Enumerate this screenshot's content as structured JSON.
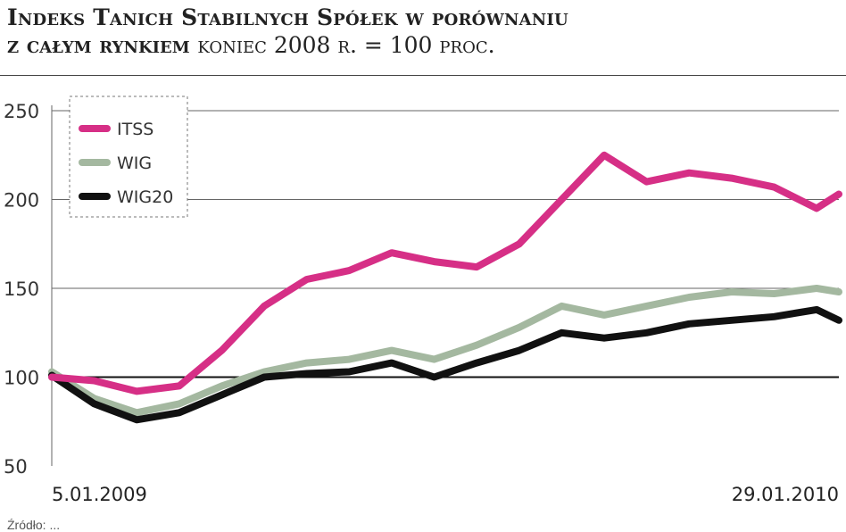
{
  "title_line1": "Indeks Tanich Stabilnych Spółek w porównaniu",
  "title_line2_bold": "z całym rynkiem",
  "title_line2_rest": "koniec 2008 r. = 100 proc.",
  "footer": "Źródło: ...",
  "colors": {
    "ITSS": "#d62f86",
    "WIG": "#a4b8a0",
    "WIG20": "#111111"
  },
  "chart_data": {
    "type": "line",
    "title": "",
    "xlabel": "",
    "ylabel": "",
    "x_start_label": "5.01.2009",
    "x_end_label": "29.01.2010",
    "ylim": [
      50,
      250
    ],
    "yticks": [
      50,
      100,
      150,
      200,
      250
    ],
    "grid": true,
    "legend": "top-left",
    "x": [
      "2009-01-05",
      "2009-01-26",
      "2009-02-16",
      "2009-03-09",
      "2009-03-30",
      "2009-04-20",
      "2009-05-11",
      "2009-06-01",
      "2009-06-22",
      "2009-07-13",
      "2009-08-03",
      "2009-08-24",
      "2009-09-14",
      "2009-10-05",
      "2009-10-26",
      "2009-11-16",
      "2009-12-07",
      "2009-12-28",
      "2010-01-18",
      "2010-01-29"
    ],
    "series": [
      {
        "name": "ITSS",
        "values": [
          100,
          98,
          92,
          95,
          115,
          140,
          155,
          160,
          170,
          165,
          162,
          175,
          200,
          225,
          210,
          215,
          212,
          207,
          195,
          203
        ]
      },
      {
        "name": "WIG",
        "values": [
          103,
          88,
          80,
          85,
          95,
          103,
          108,
          110,
          115,
          110,
          118,
          128,
          140,
          135,
          140,
          145,
          148,
          147,
          150,
          148
        ]
      },
      {
        "name": "WIG20",
        "values": [
          101,
          85,
          76,
          80,
          90,
          100,
          102,
          103,
          108,
          100,
          108,
          115,
          125,
          122,
          125,
          130,
          132,
          134,
          138,
          132
        ]
      }
    ]
  }
}
